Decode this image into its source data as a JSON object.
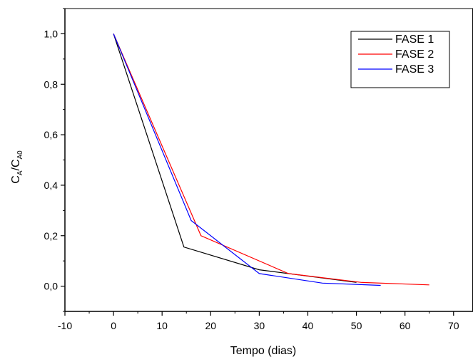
{
  "chart_data": {
    "type": "line",
    "xlabel": "Tempo (dias)",
    "ylabel": {
      "main": "C",
      "sub1": "A",
      "sep": "/C",
      "sub2": "A0"
    },
    "xlim": [
      -10,
      74
    ],
    "ylim": [
      -0.1,
      1.1
    ],
    "x_ticks": [
      -10,
      0,
      10,
      20,
      30,
      40,
      50,
      60,
      70
    ],
    "y_ticks": [
      0.0,
      0.2,
      0.4,
      0.6,
      0.8,
      1.0
    ],
    "x_tick_labels": [
      "-10",
      "0",
      "10",
      "20",
      "30",
      "40",
      "50",
      "60",
      "70"
    ],
    "y_tick_labels": [
      "0,0",
      "0,2",
      "0,4",
      "0,6",
      "0,8",
      "1,0"
    ],
    "grid": false,
    "legend_position": "top-right",
    "series": [
      {
        "name": "FASE 1",
        "color": "#000000",
        "x": [
          0,
          14.5,
          30,
          50
        ],
        "y": [
          1.0,
          0.155,
          0.065,
          0.015
        ]
      },
      {
        "name": "FASE 2",
        "color": "#ff0000",
        "x": [
          0,
          18,
          36,
          51,
          65
        ],
        "y": [
          1.0,
          0.2,
          0.05,
          0.015,
          0.005
        ]
      },
      {
        "name": "FASE 3",
        "color": "#0000ff",
        "x": [
          0,
          16,
          30,
          43,
          55
        ],
        "y": [
          1.0,
          0.26,
          0.05,
          0.012,
          0.003
        ]
      }
    ]
  }
}
